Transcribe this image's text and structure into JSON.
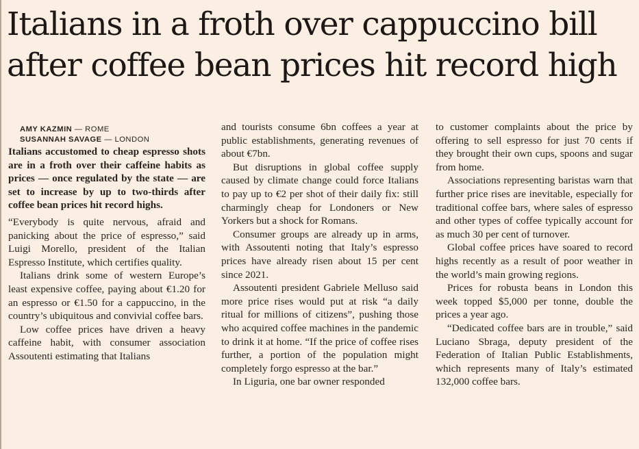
{
  "headline": "Italians in a froth over cappuccino bill after coffee bean prices hit record high",
  "bylines": [
    {
      "name": "AMY KAZMIN",
      "location": "— ROME"
    },
    {
      "name": "SUSANNAH SAVAGE",
      "location": "— LONDON"
    }
  ],
  "standfirst": "Italians accustomed to cheap espresso shots are in a froth over their caffeine habits as prices — once regulated by the state — are set to increase by up to two-thirds after coffee bean prices hit record highs.",
  "columns": [
    [
      "“Everybody is quite nervous, afraid and panicking about the price of espresso,” said Luigi Morello, president of the Italian Espresso Institute, which certifies quality.",
      "Italians drink some of western Europe’s least expensive coffee, paying about €1.20 for an espresso or €1.50 for a cappuccino, in the country’s ubiquitous and convivial coffee bars.",
      "Low coffee prices have driven a heavy caffeine habit, with consumer association Assoutenti estimating that Italians"
    ],
    [
      "and tourists consume 6bn coffees a year at public establishments, generating revenues of about €7bn.",
      "But disruptions in global coffee supply caused by climate change could force Italians to pay up to €2 per shot of their daily fix: still charmingly cheap for Londoners or New Yorkers but a shock for Romans.",
      "Consumer groups are already up in arms, with Assoutenti noting that Italy’s espresso prices have already risen about 15 per cent since 2021.",
      "Assoutenti president Gabriele Melluso said more price rises would put at risk “a daily ritual for millions of citizens”, pushing those who acquired coffee machines in the pandemic to drink it at home. “If the price of coffee rises further, a portion of the population might completely forgo espresso at the bar.”",
      "In Liguria, one bar owner responded"
    ],
    [
      "to customer complaints about the price by offering to sell espresso for just 70 cents if they brought their own cups, spoons and sugar from home.",
      "Associations representing baristas warn that further price rises are inevitable, especially for traditional coffee bars, where sales of espresso and other types of coffee typically account for as much 30 per cent of turnover.",
      "Global coffee prices have soared to record highs recently as a result of poor weather in the world’s main growing regions.",
      "Prices for robusta beans in London this week topped $5,000 per tonne, double the prices a year ago.",
      "“Dedicated coffee bars are in trouble,” said Luciano Sbraga, deputy president of the Federation of Italian Public Establishments, which represents many of Italy’s estimated 132,000 coffee bars."
    ]
  ]
}
